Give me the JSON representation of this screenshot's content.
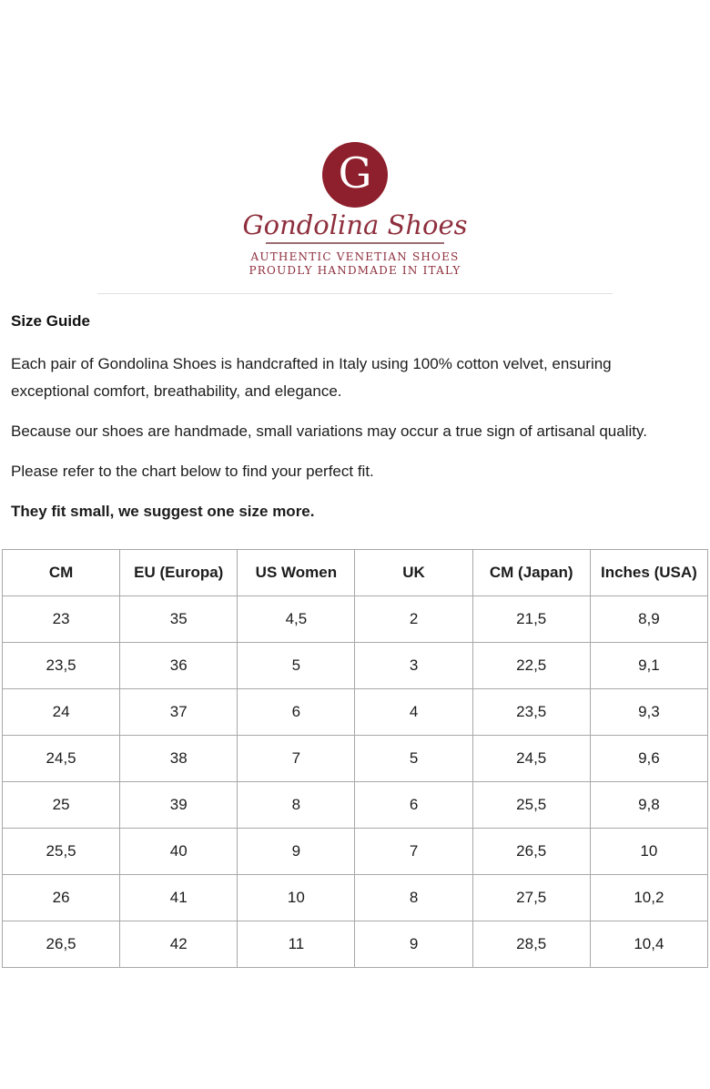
{
  "brand": {
    "monogram": "G",
    "name": "Gondolina Shoes",
    "tagline_line1": "AUTHENTIC VENETIAN SHOES",
    "tagline_line2": "PROUDLY HANDMADE IN ITALY",
    "brand_color": "#8e1f2c",
    "brand_text_color": "#8e2f3d"
  },
  "content": {
    "heading": "Size Guide",
    "paragraph1": "Each pair of Gondolina Shoes is handcrafted in Italy using 100% cotton velvet, ensuring exceptional comfort, breathability, and elegance.",
    "paragraph2": "Because our shoes are handmade, small variations may occur a true sign of artisanal quality.",
    "paragraph3": "Please refer to the chart below to find your perfect fit.",
    "note_bold": "They fit small, we suggest one size more."
  },
  "size_table": {
    "headers": [
      "CM",
      "EU (Europa)",
      "US Women",
      "UK",
      "CM (Japan)",
      "Inches (USA)"
    ],
    "rows": [
      [
        "23",
        "35",
        "4,5",
        "2",
        "21,5",
        "8,9"
      ],
      [
        "23,5",
        "36",
        "5",
        "3",
        "22,5",
        "9,1"
      ],
      [
        "24",
        "37",
        "6",
        "4",
        "23,5",
        "9,3"
      ],
      [
        "24,5",
        "38",
        "7",
        "5",
        "24,5",
        "9,6"
      ],
      [
        "25",
        "39",
        "8",
        "6",
        "25,5",
        "9,8"
      ],
      [
        "25,5",
        "40",
        "9",
        "7",
        "26,5",
        "10"
      ],
      [
        "26",
        "41",
        "10",
        "8",
        "27,5",
        "10,2"
      ],
      [
        "26,5",
        "42",
        "11",
        "9",
        "28,5",
        "10,4"
      ]
    ]
  }
}
